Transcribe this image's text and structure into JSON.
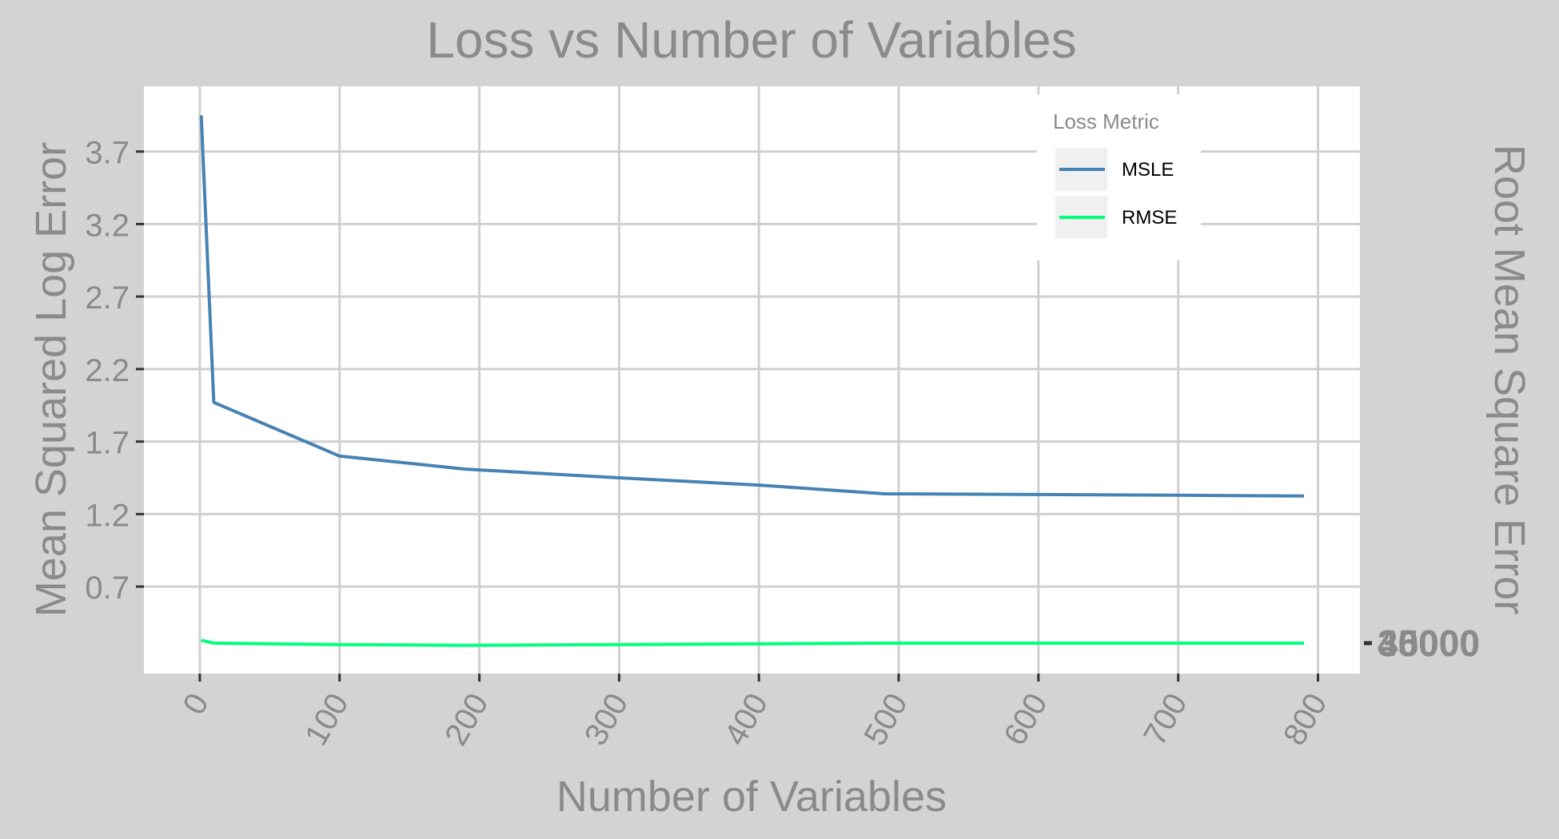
{
  "chart_data": {
    "type": "line",
    "title": "Loss vs Number of Variables",
    "xlabel": "Number of Variables",
    "ylabel": "Mean Squared Log Error",
    "y2label": "Root Mean Square Error",
    "xlim": [
      -40,
      830
    ],
    "ylim": [
      0.1,
      4.15
    ],
    "x_ticks": [
      0,
      100,
      200,
      300,
      400,
      500,
      600,
      700,
      800
    ],
    "x_tick_labels": [
      "0",
      "100",
      "200",
      "300",
      "400",
      "500",
      "600",
      "700",
      "800"
    ],
    "y_ticks": [
      0.7,
      1.2,
      1.7,
      2.2,
      2.7,
      3.2,
      3.7
    ],
    "y_tick_labels": [
      "0.7",
      "1.2",
      "1.7",
      "2.2",
      "2.7",
      "3.2",
      "3.7"
    ],
    "y2_tick_labels": [
      "30000",
      "35000",
      "40000"
    ],
    "grid": true,
    "legend": {
      "title": "Loss Metric",
      "position": "top-right"
    },
    "series": [
      {
        "name": "MSLE",
        "color": "#4682b4",
        "x": [
          1,
          10,
          100,
          190,
          300,
          400,
          490,
          600,
          700,
          790
        ],
        "values": [
          3.95,
          1.97,
          1.6,
          1.51,
          1.45,
          1.4,
          1.34,
          1.335,
          1.33,
          1.325
        ]
      },
      {
        "name": "RMSE",
        "color": "#00ff7f",
        "x": [
          1,
          10,
          100,
          190,
          300,
          400,
          490,
          600,
          700,
          790
        ],
        "values": [
          0.33,
          0.31,
          0.3,
          0.295,
          0.3,
          0.305,
          0.31,
          0.31,
          0.31,
          0.31
        ]
      }
    ]
  }
}
